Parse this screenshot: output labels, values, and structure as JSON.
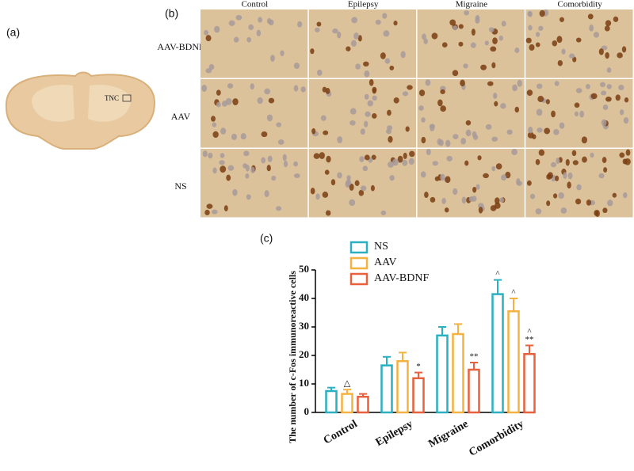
{
  "figure": {
    "panel_labels": [
      "(a)",
      "(b)",
      "(c)"
    ],
    "region_label": "TNC",
    "columns": [
      "Control",
      "Epilepsy",
      "Migraine",
      "Comorbidity"
    ],
    "rows": [
      "AAV-BDNF",
      "AAV",
      "NS"
    ]
  },
  "chart_data": {
    "type": "bar",
    "y_label": "The number of c-Fos immunoreactive cells",
    "categories": [
      "Control",
      "Epilepsy",
      "Migraine",
      "Comorbidity"
    ],
    "series": [
      {
        "name": "NS",
        "color": "#2ab0c0",
        "values": [
          7.5,
          16.5,
          27,
          41.5
        ],
        "errors": [
          1.2,
          3,
          3,
          5
        ],
        "annotations": [
          [],
          [],
          [],
          [
            "^"
          ]
        ]
      },
      {
        "name": "AAV",
        "color": "#f5b240",
        "values": [
          6.5,
          18,
          27.5,
          35.5
        ],
        "errors": [
          1.5,
          3,
          3.5,
          4.5
        ],
        "annotations": [
          [
            "△"
          ],
          [],
          [],
          [
            "^"
          ]
        ]
      },
      {
        "name": "AAV-BDNF",
        "color": "#e8603c",
        "values": [
          5.5,
          12,
          15,
          20.5
        ],
        "errors": [
          1,
          2,
          2.5,
          3
        ],
        "annotations": [
          [],
          [
            "*"
          ],
          [
            "**"
          ],
          [
            "^",
            "**"
          ]
        ]
      }
    ],
    "ylim": [
      0,
      50
    ],
    "yticks": [
      0,
      10,
      20,
      30,
      40,
      50
    ]
  }
}
